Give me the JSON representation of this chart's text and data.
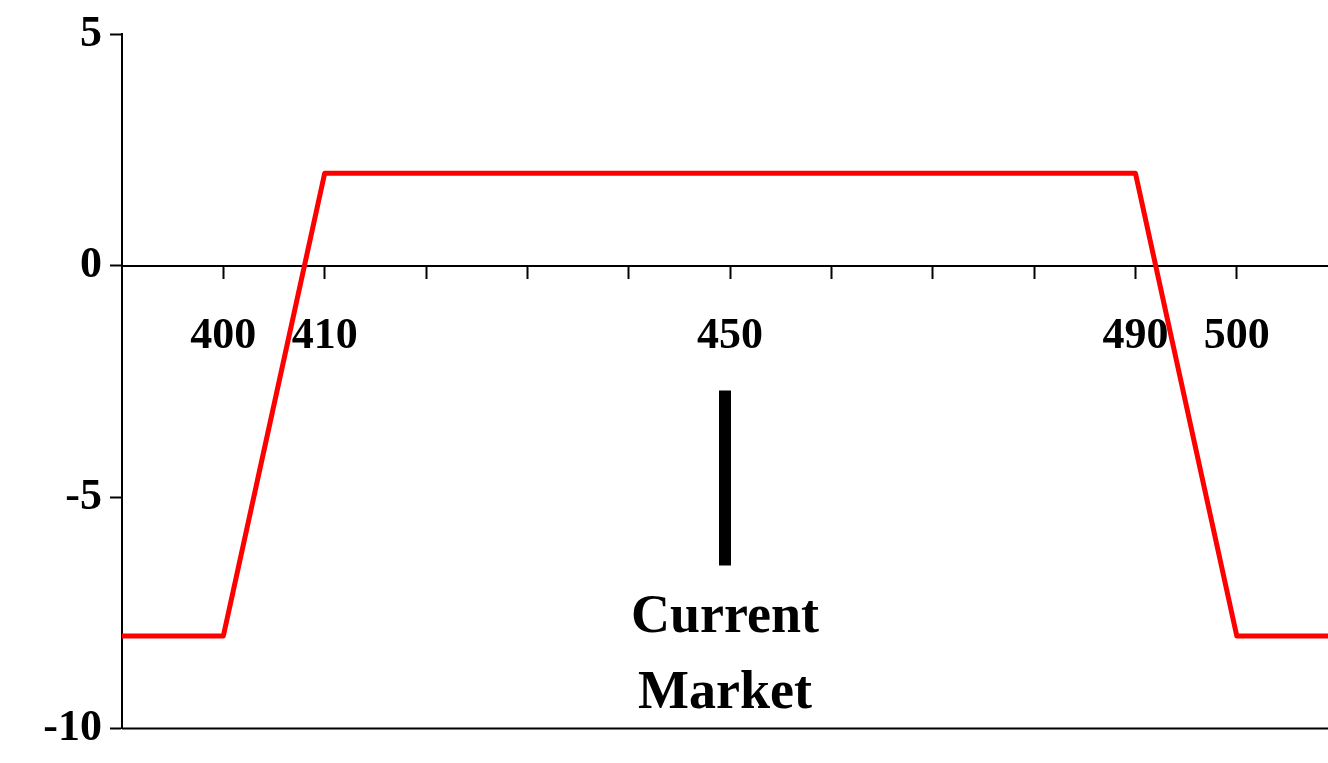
{
  "chart_data": {
    "type": "line",
    "x": [
      390,
      400,
      410,
      490,
      500,
      509
    ],
    "series": [
      {
        "color": "#ff0000",
        "values": [
          -8,
          -8,
          2,
          2,
          -8,
          -8
        ]
      }
    ],
    "xlim": [
      390,
      509
    ],
    "ylim": [
      -10,
      5
    ],
    "xticks": [
      400,
      410,
      {
        "value": 420,
        "label": null
      },
      {
        "value": 430,
        "label": null
      },
      {
        "value": 440,
        "label": null
      },
      450,
      {
        "value": 460,
        "label": null
      },
      {
        "value": 470,
        "label": null
      },
      {
        "value": 480,
        "label": null
      },
      490,
      500
    ],
    "yticks": [
      -10,
      -5,
      0,
      5
    ],
    "annotations": [
      "Current Market"
    ],
    "grid": false,
    "legend": false,
    "marker": "none",
    "line_style": "solid"
  }
}
